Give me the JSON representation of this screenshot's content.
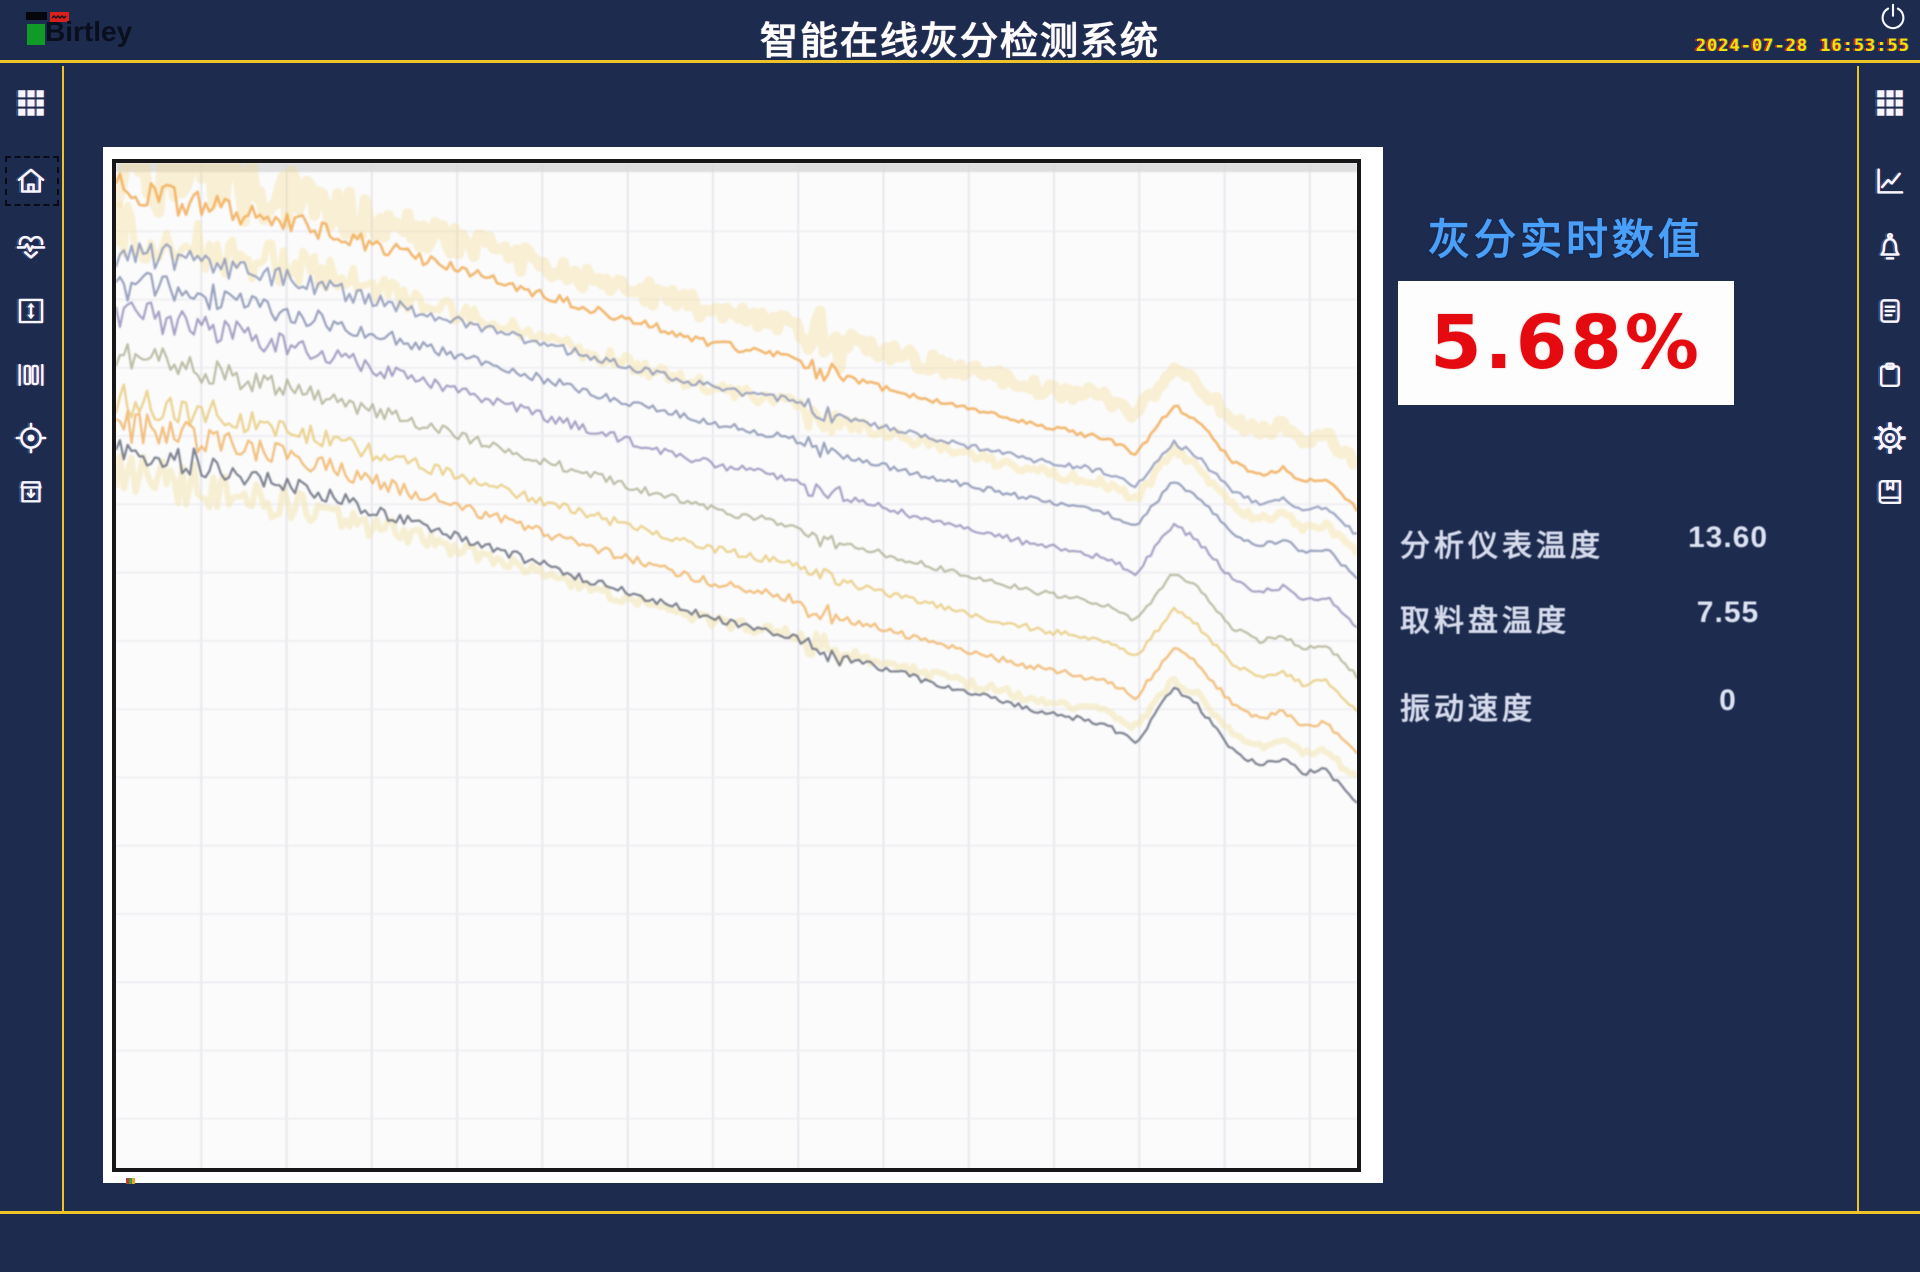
{
  "header": {
    "brand": "Birtley",
    "title": "智能在线灰分检测系统",
    "date": "2024-07-28",
    "time": "16:53:55"
  },
  "sidebar_left": {
    "items": [
      {
        "icon": "grid-icon"
      },
      {
        "icon": "home-icon",
        "selected": true
      },
      {
        "icon": "heart-pulse-icon"
      },
      {
        "icon": "vertical-expand-icon"
      },
      {
        "icon": "columns-gate-icon"
      },
      {
        "icon": "target-icon"
      },
      {
        "icon": "storage-box-icon"
      }
    ]
  },
  "sidebar_right": {
    "items": [
      {
        "icon": "grid-icon"
      },
      {
        "icon": "line-chart-icon"
      },
      {
        "icon": "bell-icon"
      },
      {
        "icon": "document-icon"
      },
      {
        "icon": "clipboard-icon"
      },
      {
        "icon": "gear-icon"
      },
      {
        "icon": "book-icon"
      }
    ]
  },
  "panel": {
    "realtime_label": "灰分实时数值",
    "ash_value": "5.68%",
    "metrics": [
      {
        "label": "分析仪表温度",
        "value": "13.60"
      },
      {
        "label": "取料盘温度",
        "value": "7.55"
      },
      {
        "label": "振动速度",
        "value": "0"
      }
    ]
  },
  "colors": {
    "background_navy": "#1d2b4f",
    "accent_yellow": "#edc327",
    "realtime_blue": "#4aa0f8",
    "ash_red": "#e50a10",
    "clock_yellow": "#f2e20c"
  },
  "chart_data": {
    "type": "line",
    "title": "",
    "note": "unlabeled multi-trace trend chart, all traces drift downward left to right with a dip-spike bump near x=0.85 and a glitch notch near x=0.57",
    "grid": {
      "v_spacing": 85,
      "h_spacing": 68,
      "v_color": "#e3e3ea",
      "h_color": "#ebebf0"
    },
    "profile": [
      [
        0,
        0
      ],
      [
        0.08,
        0.049
      ],
      [
        0.16,
        0.12
      ],
      [
        0.24,
        0.207
      ],
      [
        0.32,
        0.299
      ],
      [
        0.4,
        0.391
      ],
      [
        0.48,
        0.478
      ],
      [
        0.545,
        0.527
      ],
      [
        0.565,
        0.565
      ],
      [
        0.62,
        0.62
      ],
      [
        0.68,
        0.68
      ],
      [
        0.74,
        0.735
      ],
      [
        0.78,
        0.763
      ],
      [
        0.8,
        0.783
      ],
      [
        0.822,
        0.826
      ],
      [
        0.852,
        0.674
      ],
      [
        0.87,
        0.717
      ],
      [
        0.9,
        0.848
      ],
      [
        0.921,
        0.891
      ],
      [
        0.94,
        0.87
      ],
      [
        0.957,
        0.913
      ],
      [
        0.975,
        0.902
      ],
      [
        1,
        1
      ]
    ],
    "series": [
      {
        "name": "band-top",
        "color": "#f5d47e",
        "opacity": 0.3,
        "width": 11,
        "start": 0.005,
        "end": 0.3,
        "noise": 18,
        "seed": 11
      },
      {
        "name": "orange-1",
        "color": "#f0a84e",
        "opacity": 0.8,
        "width": 2.6,
        "start": 0.027,
        "end": 0.345,
        "noise": 7,
        "seed": 21
      },
      {
        "name": "band-yellow",
        "color": "#f6e2a4",
        "opacity": 0.45,
        "width": 7,
        "start": 0.07,
        "end": 0.39,
        "noise": 12,
        "seed": 31
      },
      {
        "name": "blue-1",
        "color": "#8d97b8",
        "opacity": 0.85,
        "width": 2.2,
        "start": 0.088,
        "end": 0.37,
        "noise": 6.5,
        "seed": 41
      },
      {
        "name": "blue-2",
        "color": "#8690b2",
        "opacity": 0.85,
        "width": 2.2,
        "start": 0.119,
        "end": 0.413,
        "noise": 6.5,
        "seed": 51
      },
      {
        "name": "purple-1",
        "color": "#9089b6",
        "opacity": 0.8,
        "width": 2.2,
        "start": 0.15,
        "end": 0.462,
        "noise": 7,
        "seed": 61
      },
      {
        "name": "olive-1",
        "color": "#a2a383",
        "opacity": 0.7,
        "width": 2.2,
        "start": 0.192,
        "end": 0.511,
        "noise": 6.5,
        "seed": 71
      },
      {
        "name": "yellow-1",
        "color": "#e7c979",
        "opacity": 0.8,
        "width": 2.4,
        "start": 0.235,
        "end": 0.546,
        "noise": 7,
        "seed": 81
      },
      {
        "name": "orange-2",
        "color": "#efae58",
        "opacity": 0.75,
        "width": 2.4,
        "start": 0.26,
        "end": 0.589,
        "noise": 7,
        "seed": 91
      },
      {
        "name": "band-yellow-2",
        "color": "#f4e3ab",
        "opacity": 0.5,
        "width": 6,
        "start": 0.309,
        "end": 0.614,
        "noise": 10,
        "seed": 101
      },
      {
        "name": "dark-grey",
        "color": "#666c7c",
        "opacity": 0.85,
        "width": 2.2,
        "start": 0.284,
        "end": 0.638,
        "noise": 6.5,
        "seed": 111
      }
    ],
    "glitch": {
      "x_center": 0.57,
      "x_halfwidth": 0.015,
      "amp_multiplier": 2.8
    },
    "left_chaos": {
      "until_x": 0.28,
      "amp_multiplier": 2.6
    },
    "top_strip_color": "#d9d9d9"
  }
}
